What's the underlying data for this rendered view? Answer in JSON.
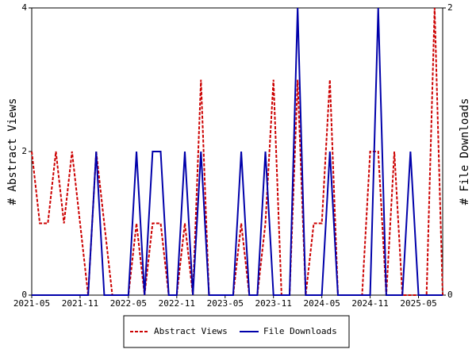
{
  "chart_data": {
    "type": "line",
    "x": [
      "2021-05",
      "2021-06",
      "2021-07",
      "2021-08",
      "2021-09",
      "2021-10",
      "2021-11",
      "2021-12",
      "2022-01",
      "2022-02",
      "2022-03",
      "2022-04",
      "2022-05",
      "2022-06",
      "2022-07",
      "2022-08",
      "2022-09",
      "2022-10",
      "2022-11",
      "2022-12",
      "2023-01",
      "2023-02",
      "2023-03",
      "2023-04",
      "2023-05",
      "2023-06",
      "2023-07",
      "2023-08",
      "2023-09",
      "2023-10",
      "2023-11",
      "2023-12",
      "2024-01",
      "2024-02",
      "2024-03",
      "2024-04",
      "2024-05",
      "2024-06",
      "2024-07",
      "2024-08",
      "2024-09",
      "2024-10",
      "2024-11",
      "2024-12",
      "2025-01",
      "2025-02",
      "2025-03",
      "2025-04",
      "2025-05",
      "2025-06",
      "2025-07",
      "2025-08"
    ],
    "xticks": [
      "2021-05",
      "2021-11",
      "2022-05",
      "2022-11",
      "2023-05",
      "2023-11",
      "2024-05",
      "2024-11",
      "2025-05"
    ],
    "ylabel": "# Abstract Views",
    "y2label": "# File Downloads",
    "ylim": [
      0,
      4
    ],
    "yticks": [
      0,
      2,
      4
    ],
    "y2lim": [
      0,
      2
    ],
    "y2ticks": [
      0,
      2
    ],
    "series": [
      {
        "name": "Abstract Views",
        "color": "#cc0000",
        "dash": true,
        "values": [
          2,
          1,
          1,
          2,
          1,
          2,
          1,
          0,
          2,
          1,
          0,
          0,
          0,
          1,
          0,
          1,
          1,
          0,
          0,
          1,
          0,
          3,
          0,
          0,
          0,
          0,
          1,
          0,
          0,
          1,
          3,
          0,
          0,
          3,
          0,
          1,
          1,
          3,
          0,
          0,
          0,
          0,
          2,
          2,
          0,
          2,
          0,
          0,
          0,
          0,
          4,
          0
        ]
      },
      {
        "name": "File Downloads",
        "color": "#0000aa",
        "axis": "y2",
        "values": [
          0,
          0,
          0,
          0,
          0,
          0,
          0,
          0,
          1,
          0,
          0,
          0,
          0,
          1,
          0,
          1,
          1,
          0,
          0,
          1,
          0,
          1,
          0,
          0,
          0,
          0,
          1,
          0,
          0,
          1,
          0,
          0,
          0,
          2,
          0,
          0,
          0,
          1,
          0,
          0,
          0,
          0,
          0,
          2,
          0,
          0,
          0,
          1,
          0,
          0,
          0,
          0
        ]
      }
    ]
  }
}
